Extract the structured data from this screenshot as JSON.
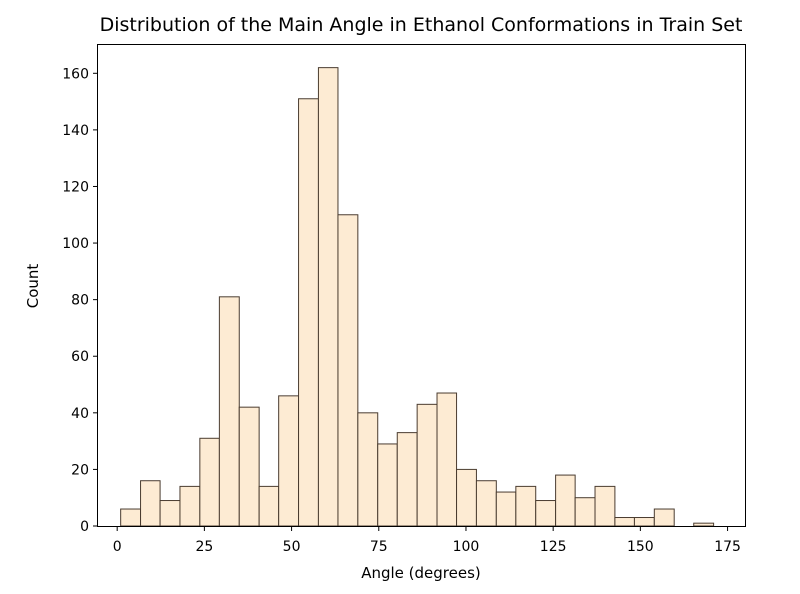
{
  "chart_data": {
    "type": "bar",
    "title": "Distribution of the Main Angle in Ethanol Conformations in Train Set",
    "xlabel": "Angle (degrees)",
    "ylabel": "Count",
    "xlim": [
      -5.5,
      180
    ],
    "ylim": [
      0,
      170
    ],
    "xticks": [
      0,
      25,
      50,
      75,
      100,
      125,
      150,
      175
    ],
    "yticks": [
      0,
      20,
      40,
      60,
      80,
      100,
      120,
      140,
      160
    ],
    "bin_edges": [
      1,
      6.7,
      12.3,
      18.0,
      23.7,
      29.3,
      35.0,
      40.7,
      46.3,
      52.0,
      57.7,
      63.3,
      69.0,
      74.7,
      80.3,
      86.0,
      91.7,
      97.3,
      103.0,
      108.7,
      114.3,
      120.0,
      125.7,
      131.3,
      137.0,
      142.7,
      148.3,
      154.0,
      159.7,
      165.3,
      171.0
    ],
    "values": [
      6,
      16,
      9,
      14,
      31,
      81,
      42,
      14,
      46,
      151,
      162,
      110,
      40,
      29,
      33,
      43,
      47,
      20,
      16,
      12,
      14,
      9,
      18,
      10,
      14,
      3,
      3,
      6,
      0,
      1
    ],
    "grid": false,
    "colors": {
      "bar_fill": "#fdebd3",
      "bar_edge": "#4a3c30",
      "axis": "#000000"
    }
  }
}
